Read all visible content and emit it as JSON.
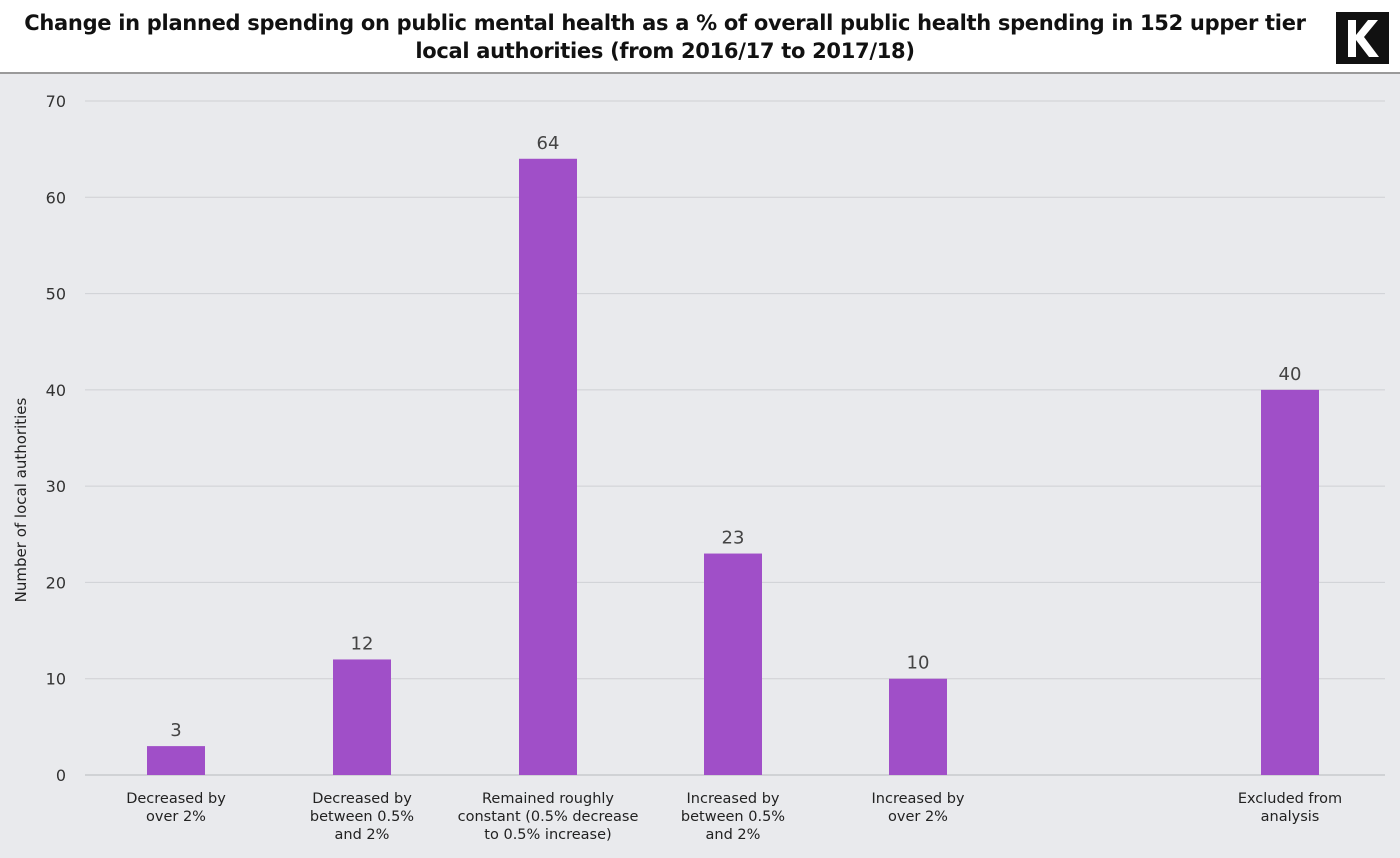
{
  "header": {
    "title": "Change in planned spending on public mental health as a % of overall public health spending in 152 upper tier local authorities (from 2016/17 to 2017/18)",
    "logo_letter": "K"
  },
  "chart_data": {
    "type": "bar",
    "title": "Change in planned spending on public mental health as a % of overall public health spending in 152 upper tier local authorities (from 2016/17 to 2017/18)",
    "xlabel": "",
    "ylabel": "Number of local authorities",
    "ylim": [
      0,
      70
    ],
    "yticks": [
      0,
      10,
      20,
      30,
      40,
      50,
      60,
      70
    ],
    "grid": true,
    "categories": [
      [
        "Decreased by",
        "over 2%"
      ],
      [
        "Decreased by",
        "between 0.5%",
        "and 2%"
      ],
      [
        "Remained roughly",
        "constant (0.5% decrease",
        "to 0.5% increase)"
      ],
      [
        "Increased by",
        "between 0.5%",
        "and 2%"
      ],
      [
        "Increased by",
        "over 2%"
      ],
      [
        "Excluded from",
        "analysis"
      ]
    ],
    "values": [
      3,
      12,
      64,
      23,
      10,
      40
    ],
    "bar_color": "#a04fc8",
    "label_color": "#444444",
    "grid_color": "#cfd0d4"
  }
}
